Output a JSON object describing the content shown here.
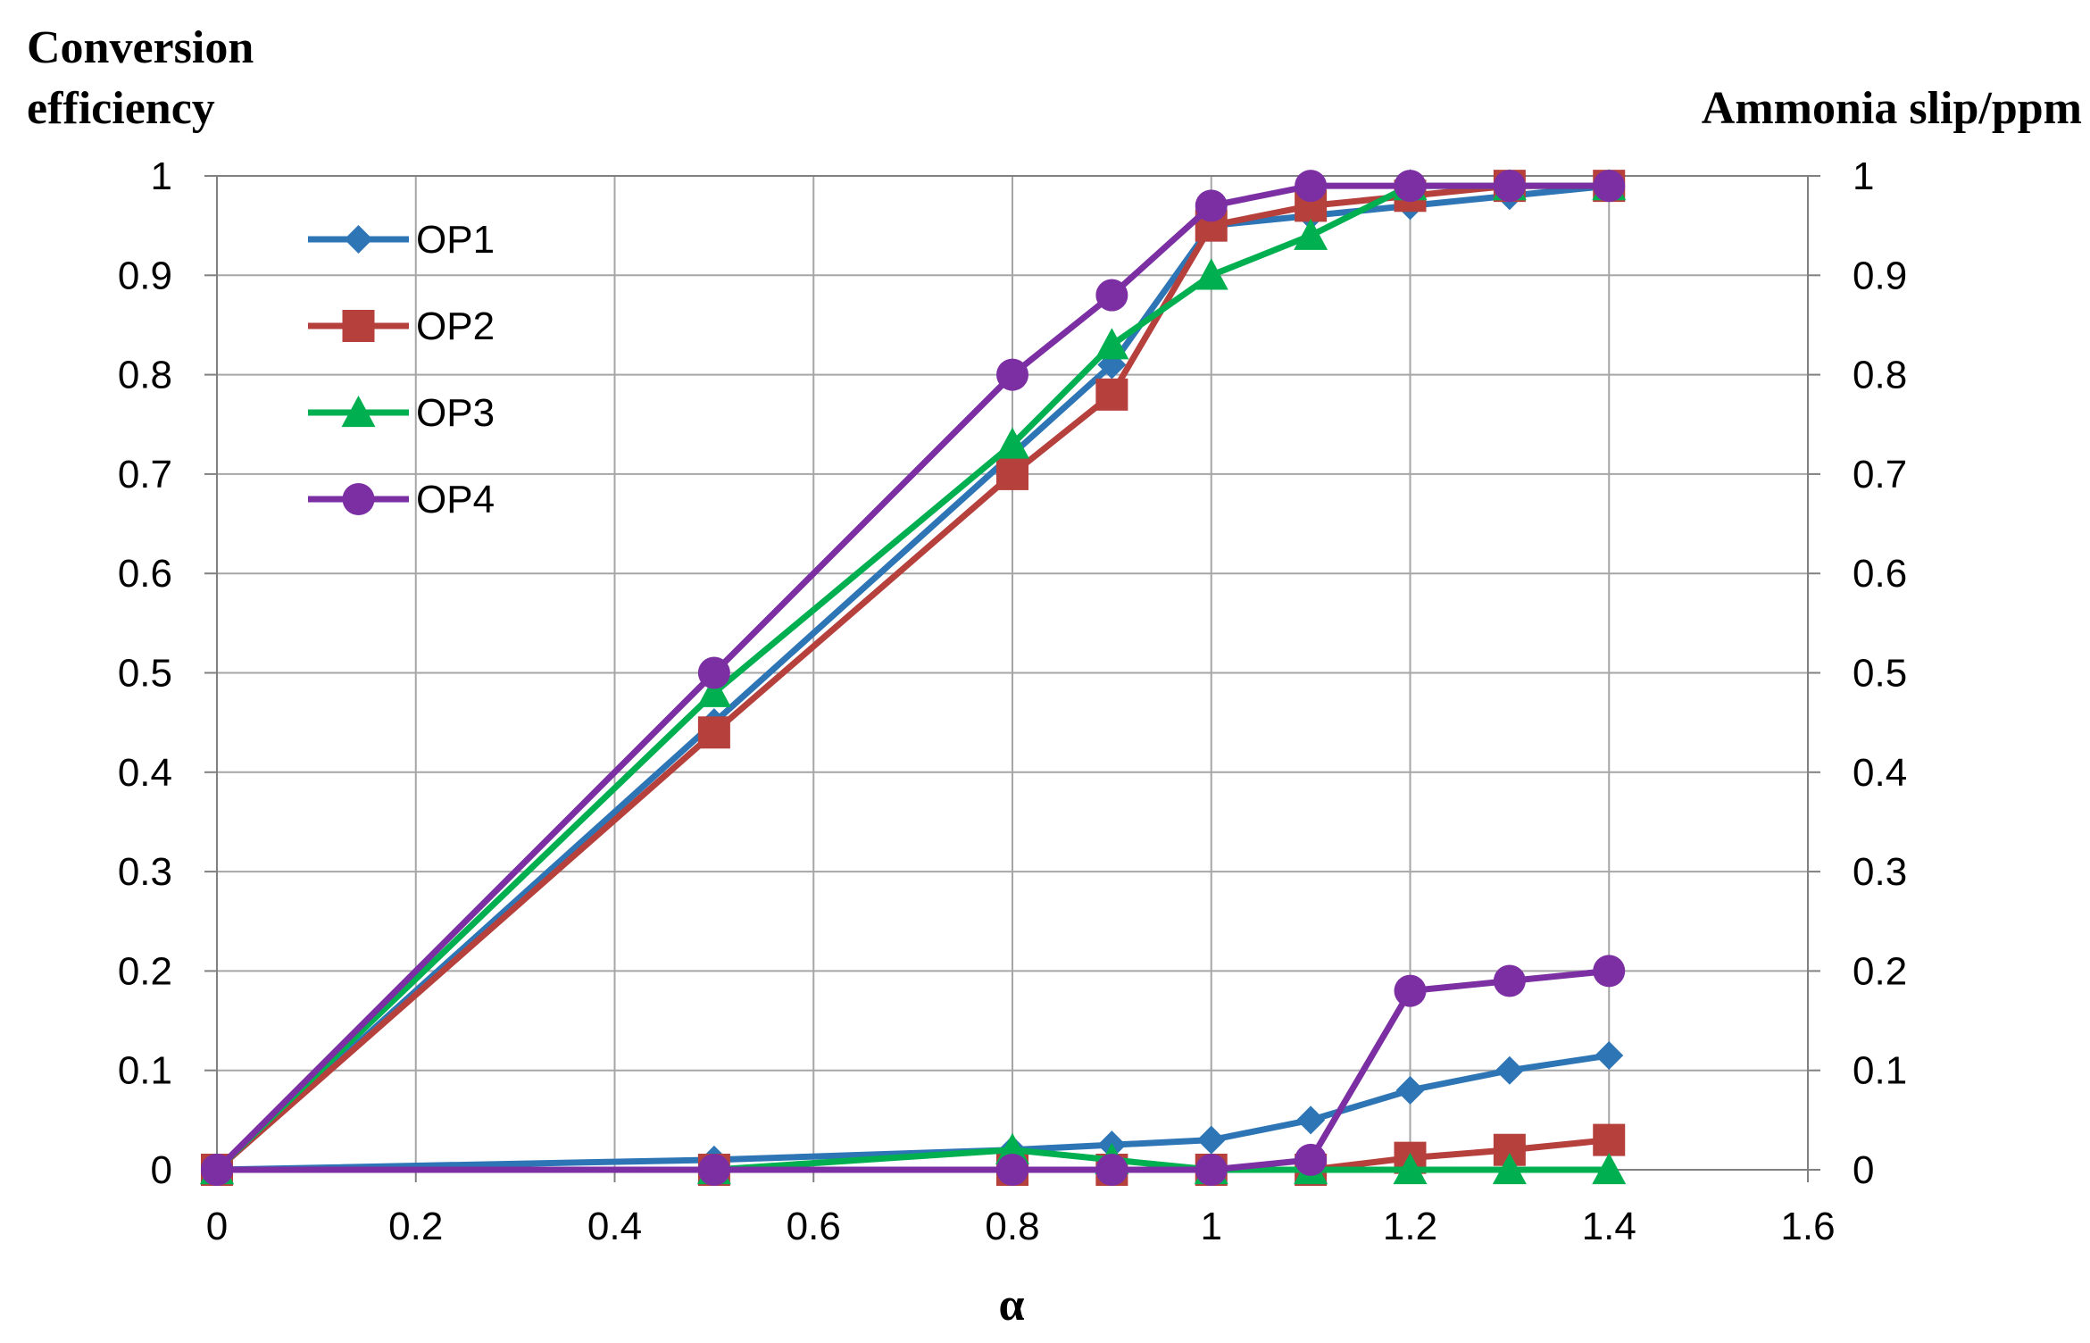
{
  "chart_data": {
    "type": "line",
    "title": "",
    "ylabel_left": [
      "Conversion",
      "efficiency"
    ],
    "ylabel_right": "Ammonia slip/ppm",
    "xlabel": "α",
    "xlim": [
      0,
      1.6
    ],
    "ylim": [
      0,
      1
    ],
    "xticks": [
      0,
      0.2,
      0.4,
      0.6,
      0.8,
      1,
      1.2,
      1.4,
      1.6
    ],
    "xtick_labels": [
      "0",
      "0.2",
      "0.4",
      "0.6",
      "0.8",
      "1",
      "1.2",
      "1.4",
      "1.6"
    ],
    "yticks": [
      0,
      0.1,
      0.2,
      0.3,
      0.4,
      0.5,
      0.6,
      0.7,
      0.8,
      0.9,
      1
    ],
    "ytick_labels": [
      "0",
      "0.1",
      "0.2",
      "0.3",
      "0.4",
      "0.5",
      "0.6",
      "0.7",
      "0.8",
      "0.9",
      "1"
    ],
    "grid": true,
    "legend_position": "top-left",
    "x": [
      0,
      0.5,
      0.8,
      0.9,
      1,
      1.1,
      1.2,
      1.3,
      1.4
    ],
    "series": [
      {
        "name": "OP1",
        "color": "#2e75b6",
        "marker": "diamond",
        "conversion": [
          0,
          0.45,
          0.72,
          0.81,
          0.95,
          0.96,
          0.97,
          0.98,
          0.99
        ],
        "ammonia_slip": [
          0,
          0.01,
          0.02,
          0.025,
          0.03,
          0.05,
          0.08,
          0.1,
          0.115
        ]
      },
      {
        "name": "OP2",
        "color": "#b5403c",
        "marker": "square",
        "conversion": [
          0,
          0.44,
          0.7,
          0.78,
          0.95,
          0.97,
          0.98,
          0.99,
          0.99
        ],
        "ammonia_slip": [
          0,
          0,
          0,
          0,
          0,
          0,
          0.012,
          0.02,
          0.03
        ]
      },
      {
        "name": "OP3",
        "color": "#00b050",
        "marker": "triangle",
        "conversion": [
          0,
          0.48,
          0.73,
          0.83,
          0.9,
          0.94,
          0.99,
          0.99,
          0.99
        ],
        "ammonia_slip": [
          0,
          0,
          0.02,
          0.01,
          0,
          0,
          0,
          0,
          0
        ]
      },
      {
        "name": "OP4",
        "color": "#7b2fa3",
        "marker": "circle",
        "conversion": [
          0,
          0.5,
          0.8,
          0.88,
          0.97,
          0.99,
          0.99,
          0.99,
          0.99
        ],
        "ammonia_slip": [
          0,
          0,
          0,
          0,
          0,
          0.01,
          0.18,
          0.19,
          0.2
        ]
      }
    ]
  }
}
